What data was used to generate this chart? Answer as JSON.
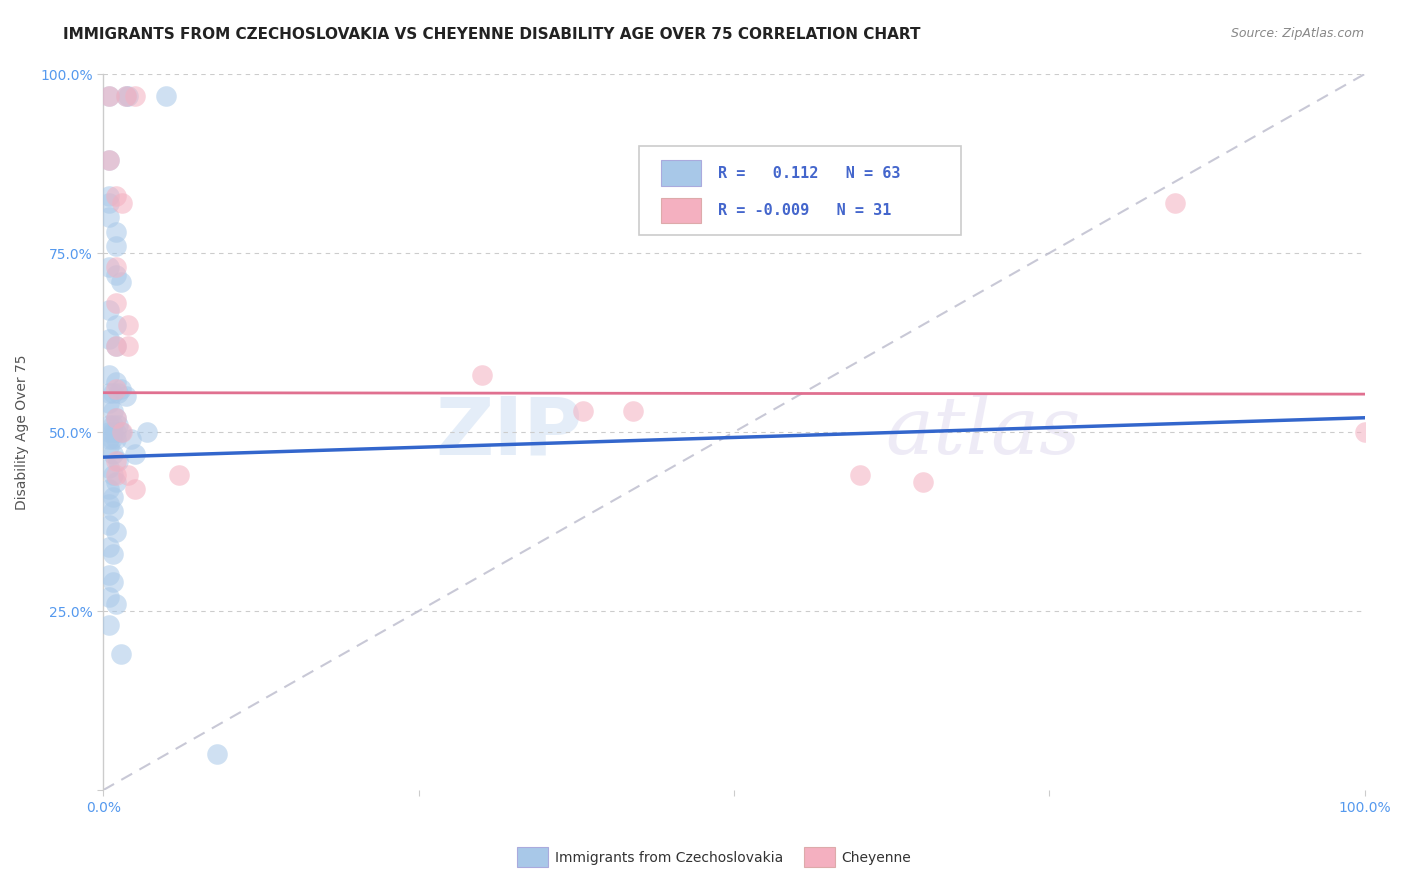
{
  "title": "IMMIGRANTS FROM CZECHOSLOVAKIA VS CHEYENNE DISABILITY AGE OVER 75 CORRELATION CHART",
  "source": "Source: ZipAtlas.com",
  "ylabel": "Disability Age Over 75",
  "xlim": [
    0,
    1
  ],
  "ylim": [
    0,
    1
  ],
  "blue_R": 0.112,
  "blue_N": 63,
  "pink_R": -0.009,
  "pink_N": 31,
  "blue_color": "#A8C8E8",
  "pink_color": "#F4B0C0",
  "blue_line_color": "#3366CC",
  "pink_line_color": "#E07090",
  "diag_color": "#BBBBCC",
  "grid_color": "#CCCCCC",
  "blue_scatter": [
    [
      0.005,
      0.97
    ],
    [
      0.018,
      0.97
    ],
    [
      0.02,
      0.97
    ],
    [
      0.005,
      0.88
    ],
    [
      0.005,
      0.83
    ],
    [
      0.005,
      0.82
    ],
    [
      0.005,
      0.8
    ],
    [
      0.01,
      0.78
    ],
    [
      0.01,
      0.76
    ],
    [
      0.005,
      0.73
    ],
    [
      0.01,
      0.72
    ],
    [
      0.014,
      0.71
    ],
    [
      0.005,
      0.67
    ],
    [
      0.01,
      0.65
    ],
    [
      0.005,
      0.63
    ],
    [
      0.01,
      0.62
    ],
    [
      0.005,
      0.58
    ],
    [
      0.01,
      0.57
    ],
    [
      0.014,
      0.56
    ],
    [
      0.005,
      0.555
    ],
    [
      0.008,
      0.555
    ],
    [
      0.012,
      0.555
    ],
    [
      0.005,
      0.54
    ],
    [
      0.008,
      0.53
    ],
    [
      0.01,
      0.52
    ],
    [
      0.005,
      0.51
    ],
    [
      0.008,
      0.51
    ],
    [
      0.012,
      0.51
    ],
    [
      0.005,
      0.5
    ],
    [
      0.008,
      0.5
    ],
    [
      0.01,
      0.5
    ],
    [
      0.014,
      0.5
    ],
    [
      0.005,
      0.49
    ],
    [
      0.007,
      0.49
    ],
    [
      0.01,
      0.49
    ],
    [
      0.005,
      0.48
    ],
    [
      0.008,
      0.47
    ],
    [
      0.012,
      0.46
    ],
    [
      0.005,
      0.45
    ],
    [
      0.008,
      0.44
    ],
    [
      0.01,
      0.43
    ],
    [
      0.005,
      0.42
    ],
    [
      0.008,
      0.41
    ],
    [
      0.005,
      0.4
    ],
    [
      0.008,
      0.39
    ],
    [
      0.005,
      0.37
    ],
    [
      0.01,
      0.36
    ],
    [
      0.005,
      0.34
    ],
    [
      0.008,
      0.33
    ],
    [
      0.005,
      0.3
    ],
    [
      0.008,
      0.29
    ],
    [
      0.005,
      0.27
    ],
    [
      0.01,
      0.26
    ],
    [
      0.005,
      0.23
    ],
    [
      0.014,
      0.19
    ],
    [
      0.018,
      0.55
    ],
    [
      0.022,
      0.49
    ],
    [
      0.025,
      0.47
    ],
    [
      0.035,
      0.5
    ],
    [
      0.05,
      0.97
    ],
    [
      0.09,
      0.05
    ]
  ],
  "pink_scatter": [
    [
      0.005,
      0.97
    ],
    [
      0.018,
      0.97
    ],
    [
      0.025,
      0.97
    ],
    [
      0.005,
      0.88
    ],
    [
      0.01,
      0.83
    ],
    [
      0.015,
      0.82
    ],
    [
      0.01,
      0.73
    ],
    [
      0.01,
      0.68
    ],
    [
      0.02,
      0.65
    ],
    [
      0.01,
      0.62
    ],
    [
      0.02,
      0.62
    ],
    [
      0.01,
      0.56
    ],
    [
      0.01,
      0.52
    ],
    [
      0.015,
      0.5
    ],
    [
      0.01,
      0.46
    ],
    [
      0.01,
      0.44
    ],
    [
      0.02,
      0.44
    ],
    [
      0.025,
      0.42
    ],
    [
      0.06,
      0.44
    ],
    [
      0.3,
      0.58
    ],
    [
      0.38,
      0.53
    ],
    [
      0.42,
      0.53
    ],
    [
      0.6,
      0.44
    ],
    [
      0.65,
      0.43
    ],
    [
      0.85,
      0.82
    ],
    [
      1.0,
      0.5
    ]
  ],
  "watermark_zip": "ZIP",
  "watermark_atlas": "atlas",
  "background_color": "#FFFFFF",
  "title_fontsize": 11,
  "axis_label_fontsize": 10,
  "tick_fontsize": 10,
  "legend_fontsize": 11
}
